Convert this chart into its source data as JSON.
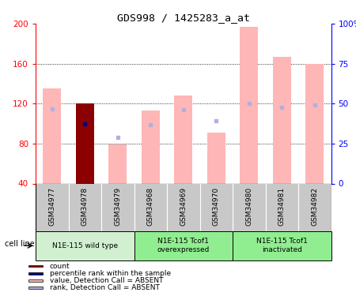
{
  "title": "GDS998 / 1425283_a_at",
  "samples": [
    "GSM34977",
    "GSM34978",
    "GSM34979",
    "GSM34968",
    "GSM34969",
    "GSM34970",
    "GSM34980",
    "GSM34981",
    "GSM34982"
  ],
  "value_bars": [
    135,
    120,
    79,
    113,
    128,
    91,
    197,
    167,
    160
  ],
  "rank_dots": [
    115,
    100,
    86,
    99,
    114,
    103,
    120,
    116,
    119
  ],
  "count_bar_index": 1,
  "count_bar_value": 120,
  "count_rank_index": 1,
  "count_rank_value": 100,
  "ylim_left": [
    40,
    200
  ],
  "ylim_right": [
    0,
    100
  ],
  "yticks_left": [
    40,
    80,
    120,
    160,
    200
  ],
  "yticks_right": [
    0,
    25,
    50,
    75,
    100
  ],
  "ytick_labels_left": [
    "40",
    "80",
    "120",
    "160",
    "200"
  ],
  "ytick_labels_right": [
    "0",
    "25",
    "50",
    "75",
    "100%"
  ],
  "bar_width": 0.55,
  "value_color_absent": "#ffb6b6",
  "rank_color_absent": "#b0b0e0",
  "count_color": "#8b0000",
  "count_rank_color": "#00008b",
  "group_colors": [
    "#d0f0d0",
    "#90ee90",
    "#90ee90"
  ],
  "group_labels": [
    "N1E-115 wild type",
    "N1E-115 Tcof1\noverexpressed",
    "N1E-115 Tcof1\ninactivated"
  ],
  "group_ranges": [
    [
      0,
      3
    ],
    [
      3,
      6
    ],
    [
      6,
      9
    ]
  ],
  "cell_line_label": "cell line",
  "legend_items": [
    {
      "color": "#8b0000",
      "label": "count"
    },
    {
      "color": "#00008b",
      "label": "percentile rank within the sample"
    },
    {
      "color": "#ffb6b6",
      "label": "value, Detection Call = ABSENT"
    },
    {
      "color": "#b0b0e0",
      "label": "rank, Detection Call = ABSENT"
    }
  ]
}
